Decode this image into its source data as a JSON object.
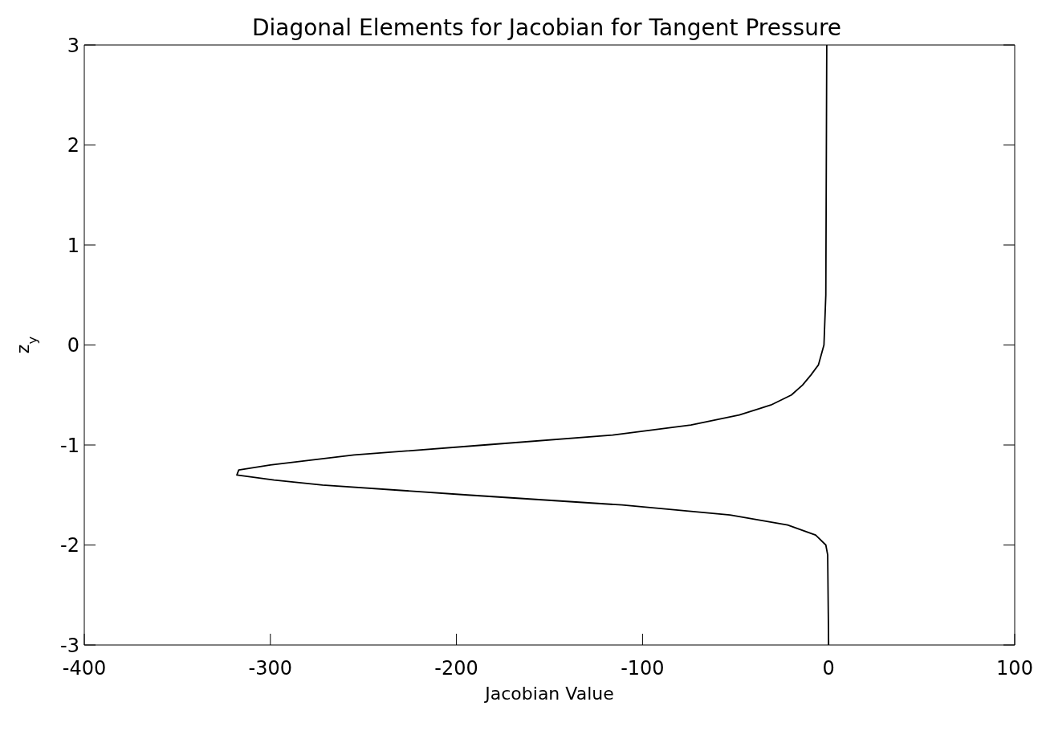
{
  "chart_data": {
    "type": "line",
    "title": "Diagonal Elements for Jacobian for Tangent Pressure",
    "xlabel": "Jacobian Value",
    "ylabel": "z$_{y}$",
    "series": [
      {
        "color": "#000000",
        "x": [
          -1,
          -1.5,
          -2.5,
          -5.5,
          -9.5,
          -14,
          -20,
          -31,
          -48,
          -74,
          -116,
          -185,
          -255,
          -300,
          -317,
          -318,
          -298,
          -272,
          -194,
          -111,
          -53,
          -22,
          -7,
          -1.5,
          -0.5,
          0
        ],
        "values": [
          3,
          0.5,
          0,
          -0.2,
          -0.3,
          -0.4,
          -0.5,
          -0.6,
          -0.7,
          -0.8,
          -0.9,
          -1.0,
          -1.1,
          -1.2,
          -1.25,
          -1.3,
          -1.35,
          -1.4,
          -1.5,
          -1.6,
          -1.7,
          -1.8,
          -1.9,
          -2.0,
          -2.1,
          -3
        ]
      }
    ],
    "xlim": [
      -400,
      100
    ],
    "xticks": [
      -400,
      -300,
      -200,
      -100,
      0,
      100
    ],
    "ylim": [
      -3,
      3
    ],
    "yticks": [
      -3,
      -2,
      -1,
      0,
      1,
      2,
      3
    ],
    "grid": false,
    "marker": "none",
    "line_style": "solid"
  }
}
